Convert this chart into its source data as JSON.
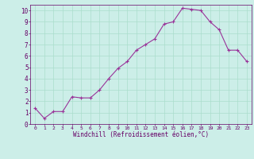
{
  "x_data": [
    0,
    1,
    2,
    3,
    4,
    5,
    6,
    7,
    8,
    9,
    10,
    11,
    12,
    13,
    14,
    15,
    16,
    17,
    18,
    19,
    20,
    21,
    22,
    23
  ],
  "y_data": [
    1.4,
    0.5,
    1.1,
    1.1,
    2.4,
    2.3,
    2.3,
    3.0,
    4.0,
    4.9,
    5.5,
    6.5,
    7.0,
    7.5,
    8.8,
    9.0,
    10.2,
    10.1,
    10.0,
    9.0,
    8.3,
    6.5,
    6.5,
    5.5
  ],
  "line_color": "#993399",
  "marker_color": "#993399",
  "bg_color": "#cceee8",
  "grid_color": "#aaddcc",
  "xlabel": "Windchill (Refroidissement éolien,°C)",
  "xlim": [
    -0.5,
    23.5
  ],
  "ylim": [
    0,
    10.5
  ],
  "yticks": [
    0,
    1,
    2,
    3,
    4,
    5,
    6,
    7,
    8,
    9,
    10
  ],
  "xticks": [
    0,
    1,
    2,
    3,
    4,
    5,
    6,
    7,
    8,
    9,
    10,
    11,
    12,
    13,
    14,
    15,
    16,
    17,
    18,
    19,
    20,
    21,
    22,
    23
  ],
  "tick_color": "#660066",
  "font_name": "monospace",
  "xlabel_fontsize": 5.5,
  "tick_fontsize_x": 4.5,
  "tick_fontsize_y": 5.5
}
